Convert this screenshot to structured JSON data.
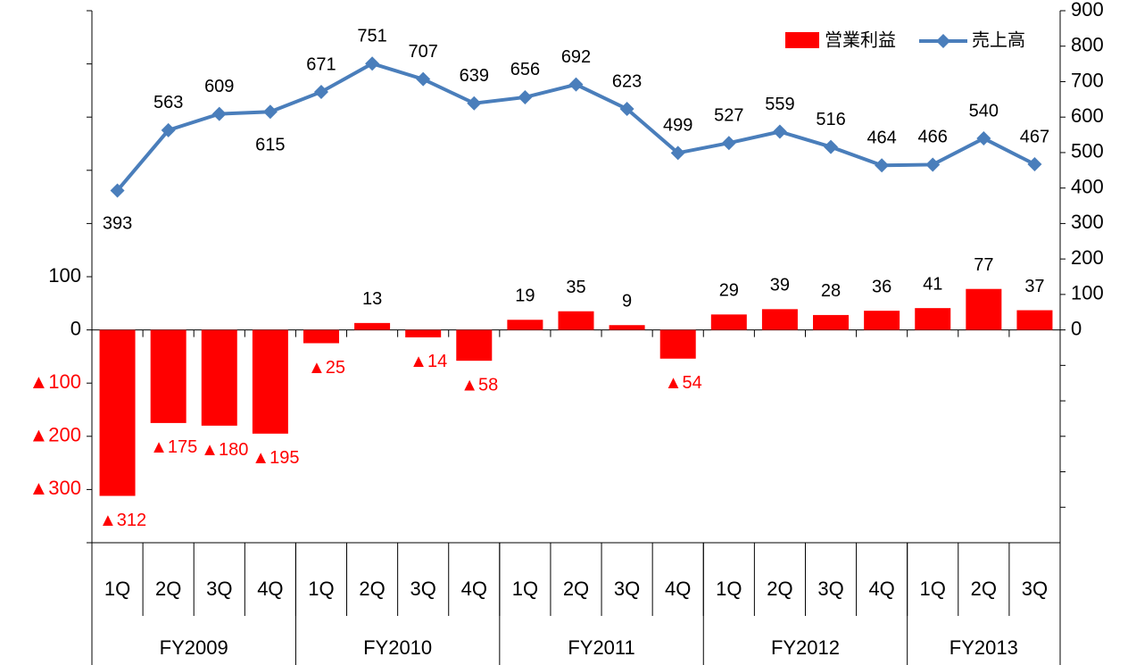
{
  "chart_data": {
    "type": "bar_line",
    "categories": [
      "1Q",
      "2Q",
      "3Q",
      "4Q",
      "1Q",
      "2Q",
      "3Q",
      "4Q",
      "1Q",
      "2Q",
      "3Q",
      "4Q",
      "1Q",
      "2Q",
      "3Q",
      "4Q",
      "1Q",
      "2Q",
      "3Q"
    ],
    "groups": [
      {
        "label": "FY2009",
        "span": 4
      },
      {
        "label": "FY2010",
        "span": 4
      },
      {
        "label": "FY2011",
        "span": 4
      },
      {
        "label": "FY2012",
        "span": 4
      },
      {
        "label": "FY2013",
        "span": 3
      }
    ],
    "series": [
      {
        "name": "営業利益",
        "type": "bar",
        "color": "#ff0000",
        "negative_label_color": "#ff0000",
        "values": [
          -312,
          -175,
          -180,
          -195,
          -25,
          13,
          -14,
          -58,
          19,
          35,
          9,
          -54,
          29,
          39,
          28,
          36,
          41,
          77,
          37
        ],
        "value_labels": [
          "▲312",
          "▲175",
          "▲180",
          "▲195",
          "▲25",
          "13",
          "▲14",
          "▲58",
          "19",
          "35",
          "9",
          "▲54",
          "29",
          "39",
          "28",
          "36",
          "41",
          "77",
          "37"
        ]
      },
      {
        "name": "売上高",
        "type": "line",
        "axis": "y2",
        "color": "#4a7ebb",
        "values": [
          393,
          563,
          609,
          615,
          671,
          751,
          707,
          639,
          656,
          692,
          623,
          499,
          527,
          559,
          516,
          464,
          466,
          540,
          467
        ]
      }
    ],
    "ylim": [
      -400,
      600
    ],
    "yticks": [
      {
        "value": -300,
        "label": "▲300"
      },
      {
        "value": -200,
        "label": "▲200"
      },
      {
        "value": -100,
        "label": "▲100"
      },
      0,
      100
    ],
    "yminorticks": [
      -400,
      -300,
      -200,
      -100,
      0,
      100,
      200,
      300,
      400,
      500,
      600
    ],
    "y2lim": [
      -600,
      900
    ],
    "y2ticks": [
      0,
      100,
      200,
      300,
      400,
      500,
      600,
      700,
      800,
      900
    ],
    "y2minorticks": [
      -500,
      -400,
      -300,
      -200,
      -100
    ],
    "legend": "top-right"
  }
}
